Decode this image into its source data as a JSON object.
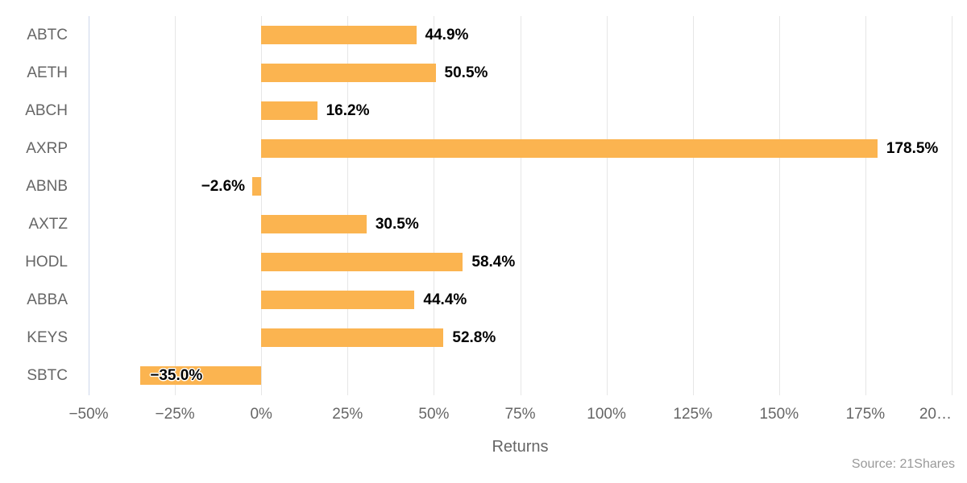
{
  "chart_data": {
    "type": "bar",
    "orientation": "horizontal",
    "categories": [
      "ABTC",
      "AETH",
      "ABCH",
      "AXRP",
      "ABNB",
      "AXTZ",
      "HODL",
      "ABBA",
      "KEYS",
      "SBTC"
    ],
    "values": [
      44.9,
      50.5,
      16.2,
      178.5,
      -2.6,
      30.5,
      58.4,
      44.4,
      52.8,
      -35.0
    ],
    "value_labels": [
      "44.9%",
      "50.5%",
      "16.2%",
      "178.5%",
      "−2.6%",
      "30.5%",
      "58.4%",
      "44.4%",
      "52.8%",
      "−35.0%"
    ],
    "label_placements": [
      "right",
      "right",
      "right",
      "right",
      "left",
      "right",
      "right",
      "right",
      "right",
      "inside"
    ],
    "xlabel": "Returns",
    "xlim": [
      -50,
      200
    ],
    "tick_values": [
      -50,
      -25,
      0,
      25,
      50,
      75,
      100,
      125,
      150,
      175,
      200
    ],
    "tick_labels": [
      "−50%",
      "−25%",
      "0%",
      "25%",
      "50%",
      "75%",
      "100%",
      "125%",
      "150%",
      "175%",
      "20…"
    ],
    "grid": "vertical-only",
    "legend": "none",
    "source": "Source: 21Shares",
    "colors": {
      "bar": "#FBB450",
      "grid": "#E6E6E6",
      "axis_line": "#CCD6EB",
      "axis_text": "#666666",
      "data_label": "#000000",
      "source_text": "#999999",
      "background": "#FFFFFF"
    }
  }
}
